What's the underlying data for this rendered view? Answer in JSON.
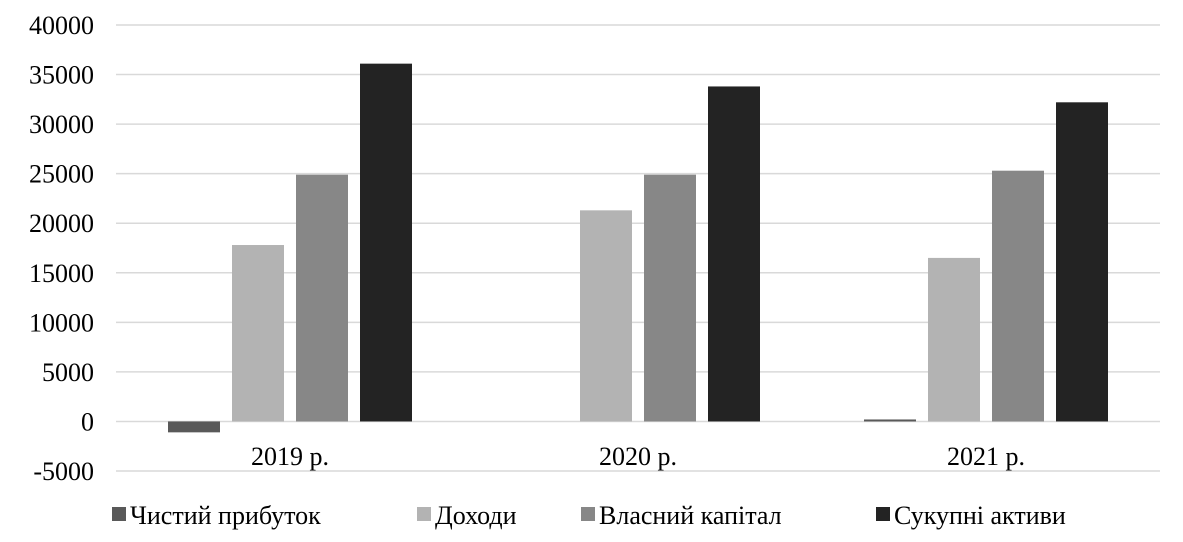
{
  "chart_data": {
    "type": "bar",
    "categories": [
      "2019 р.",
      "2020 р.",
      "2021 р."
    ],
    "series": [
      {
        "name": "Чистий прибуток",
        "values": [
          -1100,
          0,
          200
        ],
        "color": "#595959"
      },
      {
        "name": "Доходи",
        "values": [
          17800,
          21300,
          16500
        ],
        "color": "#b3b3b3"
      },
      {
        "name": "Власний капітал",
        "values": [
          24900,
          24900,
          25300
        ],
        "color": "#878787"
      },
      {
        "name": "Сукупні активи",
        "values": [
          36100,
          33800,
          32200
        ],
        "color": "#232323"
      }
    ],
    "yticks": [
      "40000",
      "35000",
      "30000",
      "25000",
      "20000",
      "15000",
      "10000",
      "5000",
      "0",
      "-5000"
    ],
    "ylim": [
      -5000,
      40000
    ],
    "grid": true,
    "legend": "bottom",
    "gridline_color": "#d9d9d9"
  }
}
